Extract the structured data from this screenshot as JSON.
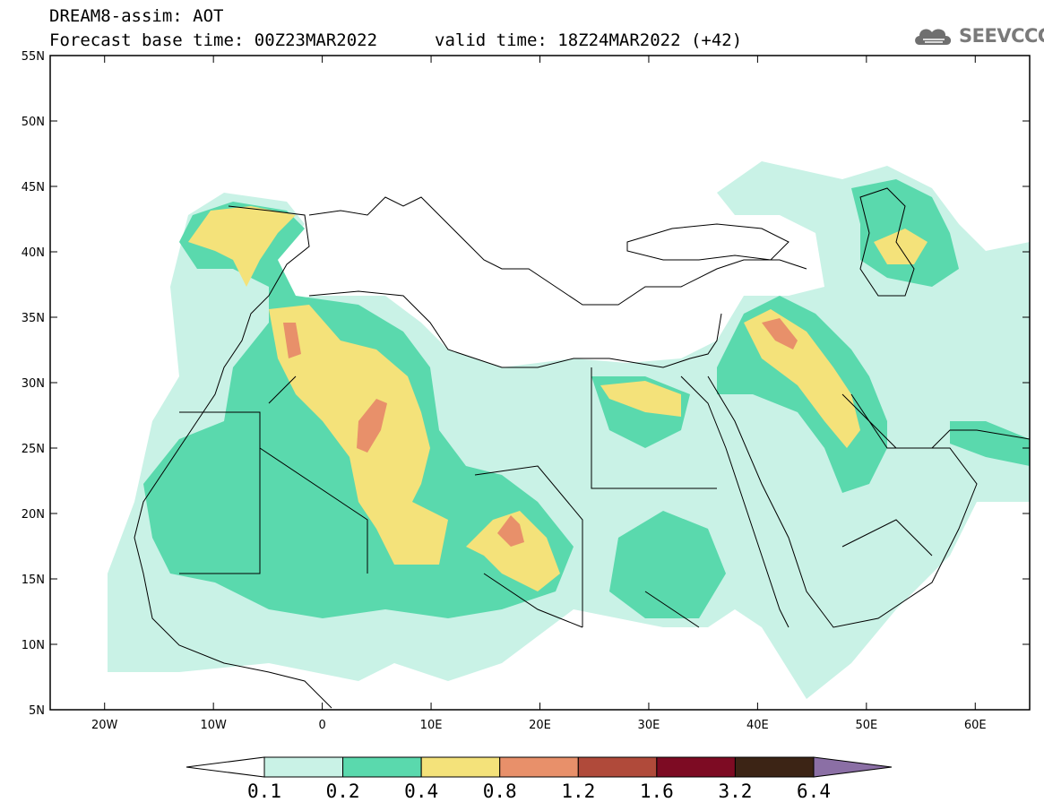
{
  "header": {
    "title": "DREAM8-assim: AOT",
    "base_time": "Forecast base time: 00Z23MAR2022",
    "valid_time": "valid time: 18Z24MAR2022 (+42)",
    "logo_text": "SEEVCCC",
    "logo_icon": "cloud-icon"
  },
  "map": {
    "lat_labels": [
      "55N",
      "50N",
      "45N",
      "40N",
      "35N",
      "30N",
      "25N",
      "20N",
      "15N",
      "10N",
      "5N"
    ],
    "lat_values": [
      55,
      50,
      45,
      40,
      35,
      30,
      25,
      20,
      15,
      10,
      5
    ],
    "lon_labels": [
      "20W",
      "10W",
      "0",
      "10E",
      "20E",
      "30E",
      "40E",
      "50E",
      "60E"
    ],
    "lon_values": [
      -20,
      -10,
      0,
      10,
      20,
      30,
      40,
      50,
      60
    ],
    "lon_range": [
      -25,
      65
    ],
    "lat_range": [
      5,
      55
    ]
  },
  "colorbar": {
    "levels": [
      "0.1",
      "0.2",
      "0.4",
      "0.8",
      "1.2",
      "1.6",
      "3.2",
      "6.4"
    ],
    "colors": [
      "#ffffff",
      "#c9f2e6",
      "#5ad9ad",
      "#f4e27a",
      "#e8906a",
      "#b04a3a",
      "#7d0b23",
      "#3c2415",
      "#8b6fa5"
    ]
  }
}
